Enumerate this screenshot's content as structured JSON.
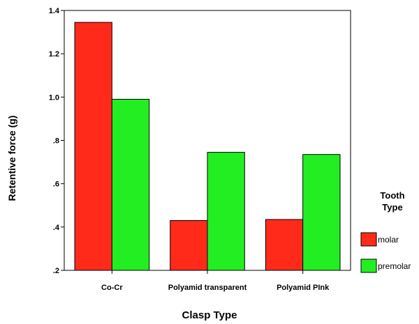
{
  "chart_data": {
    "type": "bar",
    "xlabel": "Clasp Type",
    "ylabel": "Retentive force (g)",
    "categories": [
      "Co-Cr",
      "Polyamid transparent",
      "Polyamid PInk"
    ],
    "series": [
      {
        "name": "molar",
        "color": "#ff2a1a",
        "values": [
          1.345,
          0.43,
          0.435
        ]
      },
      {
        "name": "premolar",
        "color": "#22ee22",
        "values": [
          0.99,
          0.745,
          0.735
        ]
      }
    ],
    "ylim": [
      0.2,
      1.4
    ],
    "yticks": [
      {
        "value": 0.2,
        "label": ".2"
      },
      {
        "value": 0.4,
        "label": ".4"
      },
      {
        "value": 0.6,
        "label": ".6"
      },
      {
        "value": 0.8,
        "label": ".8"
      },
      {
        "value": 1.0,
        "label": "1.0"
      },
      {
        "value": 1.2,
        "label": "1.2"
      },
      {
        "value": 1.4,
        "label": "1.4"
      }
    ],
    "legend_title": "Tooth Type",
    "legend_position": "right",
    "grid": false
  }
}
